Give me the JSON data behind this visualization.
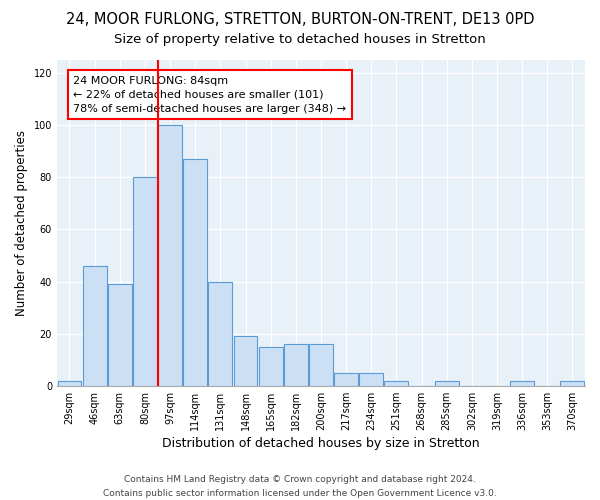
{
  "title1": "24, MOOR FURLONG, STRETTON, BURTON-ON-TRENT, DE13 0PD",
  "title2": "Size of property relative to detached houses in Stretton",
  "xlabel": "Distribution of detached houses by size in Stretton",
  "ylabel": "Number of detached properties",
  "bar_labels": [
    "29sqm",
    "46sqm",
    "63sqm",
    "80sqm",
    "97sqm",
    "114sqm",
    "131sqm",
    "148sqm",
    "165sqm",
    "182sqm",
    "200sqm",
    "217sqm",
    "234sqm",
    "251sqm",
    "268sqm",
    "285sqm",
    "302sqm",
    "319sqm",
    "336sqm",
    "353sqm",
    "370sqm"
  ],
  "bar_values": [
    2,
    46,
    39,
    80,
    100,
    87,
    40,
    19,
    15,
    16,
    16,
    5,
    5,
    2,
    0,
    2,
    0,
    0,
    2,
    0,
    2
  ],
  "bar_color": "#cce0f5",
  "bar_edge_color": "#5b9bd5",
  "ylim": [
    0,
    125
  ],
  "yticks": [
    0,
    20,
    40,
    60,
    80,
    100,
    120
  ],
  "red_line_index": 3.5,
  "annotation_text": "24 MOOR FURLONG: 84sqm\n← 22% of detached houses are smaller (101)\n78% of semi-detached houses are larger (348) →",
  "footer1": "Contains HM Land Registry data © Crown copyright and database right 2024.",
  "footer2": "Contains public sector information licensed under the Open Government Licence v3.0.",
  "background_color": "#e8f0f8",
  "grid_color": "#ffffff",
  "fig_background": "#ffffff",
  "title1_fontsize": 10.5,
  "title2_fontsize": 9.5,
  "xlabel_fontsize": 9,
  "ylabel_fontsize": 8.5,
  "tick_fontsize": 7,
  "annotation_fontsize": 8,
  "footer_fontsize": 6.5
}
